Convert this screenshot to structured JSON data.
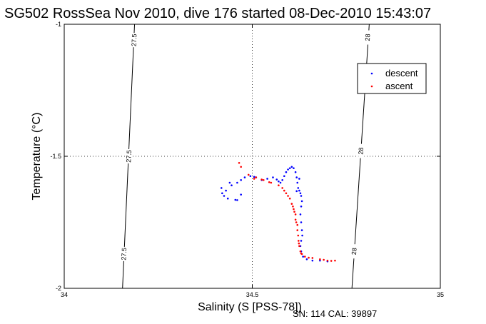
{
  "chart_data": {
    "type": "scatter",
    "title": "SG502 RossSea Nov 2010, dive 176 started 08-Dec-2010 15:43:07",
    "xlabel": "Salinity (S [PSS-78])",
    "ylabel": "Temperature (°C)",
    "xlim": [
      34,
      35
    ],
    "ylim": [
      -2,
      -1
    ],
    "x_ticks": [
      "34",
      "34.5",
      "35"
    ],
    "y_ticks": [
      "-1",
      "-1.5",
      "-2"
    ],
    "grid": "dotted at 34.5 and -1.5",
    "legend_position": "top-right",
    "contours": [
      {
        "label": "27.5",
        "points": [
          [
            34.187,
            -1.0
          ],
          [
            34.155,
            -2.0
          ]
        ],
        "label_positions": [
          [
            34.187,
            -1.06
          ],
          [
            34.173,
            -1.5
          ],
          [
            34.16,
            -1.87
          ]
        ]
      },
      {
        "label": "28",
        "points": [
          [
            34.811,
            -1.0
          ],
          [
            34.765,
            -2.0
          ]
        ],
        "label_positions": [
          [
            34.808,
            -1.05
          ],
          [
            34.79,
            -1.48
          ],
          [
            34.772,
            -1.86
          ]
        ]
      }
    ],
    "series": [
      {
        "name": "descent",
        "color": "#0000ff",
        "points": [
          [
            34.42,
            -1.64
          ],
          [
            34.43,
            -1.63
          ],
          [
            34.445,
            -1.61
          ],
          [
            34.46,
            -1.6
          ],
          [
            34.47,
            -1.59
          ],
          [
            34.48,
            -1.58
          ],
          [
            34.495,
            -1.575
          ],
          [
            34.51,
            -1.58
          ],
          [
            34.525,
            -1.59
          ],
          [
            34.54,
            -1.585
          ],
          [
            34.555,
            -1.58
          ],
          [
            34.57,
            -1.595
          ],
          [
            34.575,
            -1.6
          ],
          [
            34.58,
            -1.59
          ],
          [
            34.585,
            -1.575
          ],
          [
            34.59,
            -1.56
          ],
          [
            34.595,
            -1.55
          ],
          [
            34.6,
            -1.545
          ],
          [
            34.605,
            -1.54
          ],
          [
            34.61,
            -1.545
          ],
          [
            34.615,
            -1.56
          ],
          [
            34.618,
            -1.58
          ],
          [
            34.62,
            -1.6
          ],
          [
            34.622,
            -1.62
          ],
          [
            34.625,
            -1.63
          ],
          [
            34.628,
            -1.64
          ],
          [
            34.63,
            -1.65
          ],
          [
            34.632,
            -1.67
          ],
          [
            34.63,
            -1.69
          ],
          [
            34.628,
            -1.72
          ],
          [
            34.63,
            -1.75
          ],
          [
            34.632,
            -1.78
          ],
          [
            34.633,
            -1.8
          ],
          [
            34.63,
            -1.82
          ],
          [
            34.628,
            -1.84
          ],
          [
            34.63,
            -1.86
          ],
          [
            34.635,
            -1.88
          ],
          [
            34.645,
            -1.89
          ],
          [
            34.66,
            -1.895
          ],
          [
            34.68,
            -1.895
          ],
          [
            34.7,
            -1.898
          ],
          [
            34.425,
            -1.65
          ],
          [
            34.435,
            -1.66
          ],
          [
            34.455,
            -1.665
          ],
          [
            34.46,
            -1.666
          ],
          [
            34.47,
            -1.645
          ],
          [
            34.418,
            -1.62
          ],
          [
            34.44,
            -1.6
          ],
          [
            34.505,
            -1.578
          ],
          [
            34.565,
            -1.588
          ],
          [
            34.618,
            -1.632
          ],
          [
            34.625,
            -1.585
          ]
        ]
      },
      {
        "name": "ascent",
        "color": "#ff0000",
        "points": [
          [
            34.465,
            -1.525
          ],
          [
            34.47,
            -1.54
          ],
          [
            34.49,
            -1.57
          ],
          [
            34.51,
            -1.58
          ],
          [
            34.53,
            -1.59
          ],
          [
            34.55,
            -1.6
          ],
          [
            34.57,
            -1.61
          ],
          [
            34.58,
            -1.62
          ],
          [
            34.59,
            -1.64
          ],
          [
            34.6,
            -1.66
          ],
          [
            34.605,
            -1.68
          ],
          [
            34.61,
            -1.7
          ],
          [
            34.615,
            -1.72
          ],
          [
            34.615,
            -1.74
          ],
          [
            34.62,
            -1.76
          ],
          [
            34.62,
            -1.78
          ],
          [
            34.622,
            -1.8
          ],
          [
            34.623,
            -1.82
          ],
          [
            34.625,
            -1.84
          ],
          [
            34.628,
            -1.86
          ],
          [
            34.632,
            -1.87
          ],
          [
            34.64,
            -1.88
          ],
          [
            34.66,
            -1.885
          ],
          [
            34.68,
            -1.89
          ],
          [
            34.7,
            -1.895
          ],
          [
            34.72,
            -1.895
          ],
          [
            34.505,
            -1.585
          ],
          [
            34.525,
            -1.588
          ],
          [
            34.545,
            -1.598
          ],
          [
            34.585,
            -1.63
          ],
          [
            34.595,
            -1.65
          ],
          [
            34.608,
            -1.69
          ],
          [
            34.612,
            -1.71
          ],
          [
            34.617,
            -1.75
          ],
          [
            34.624,
            -1.83
          ],
          [
            34.63,
            -1.868
          ],
          [
            34.65,
            -1.884
          ],
          [
            34.69,
            -1.892
          ],
          [
            34.71,
            -1.896
          ]
        ]
      }
    ]
  },
  "footer": "SN: 114  CAL: 39897"
}
